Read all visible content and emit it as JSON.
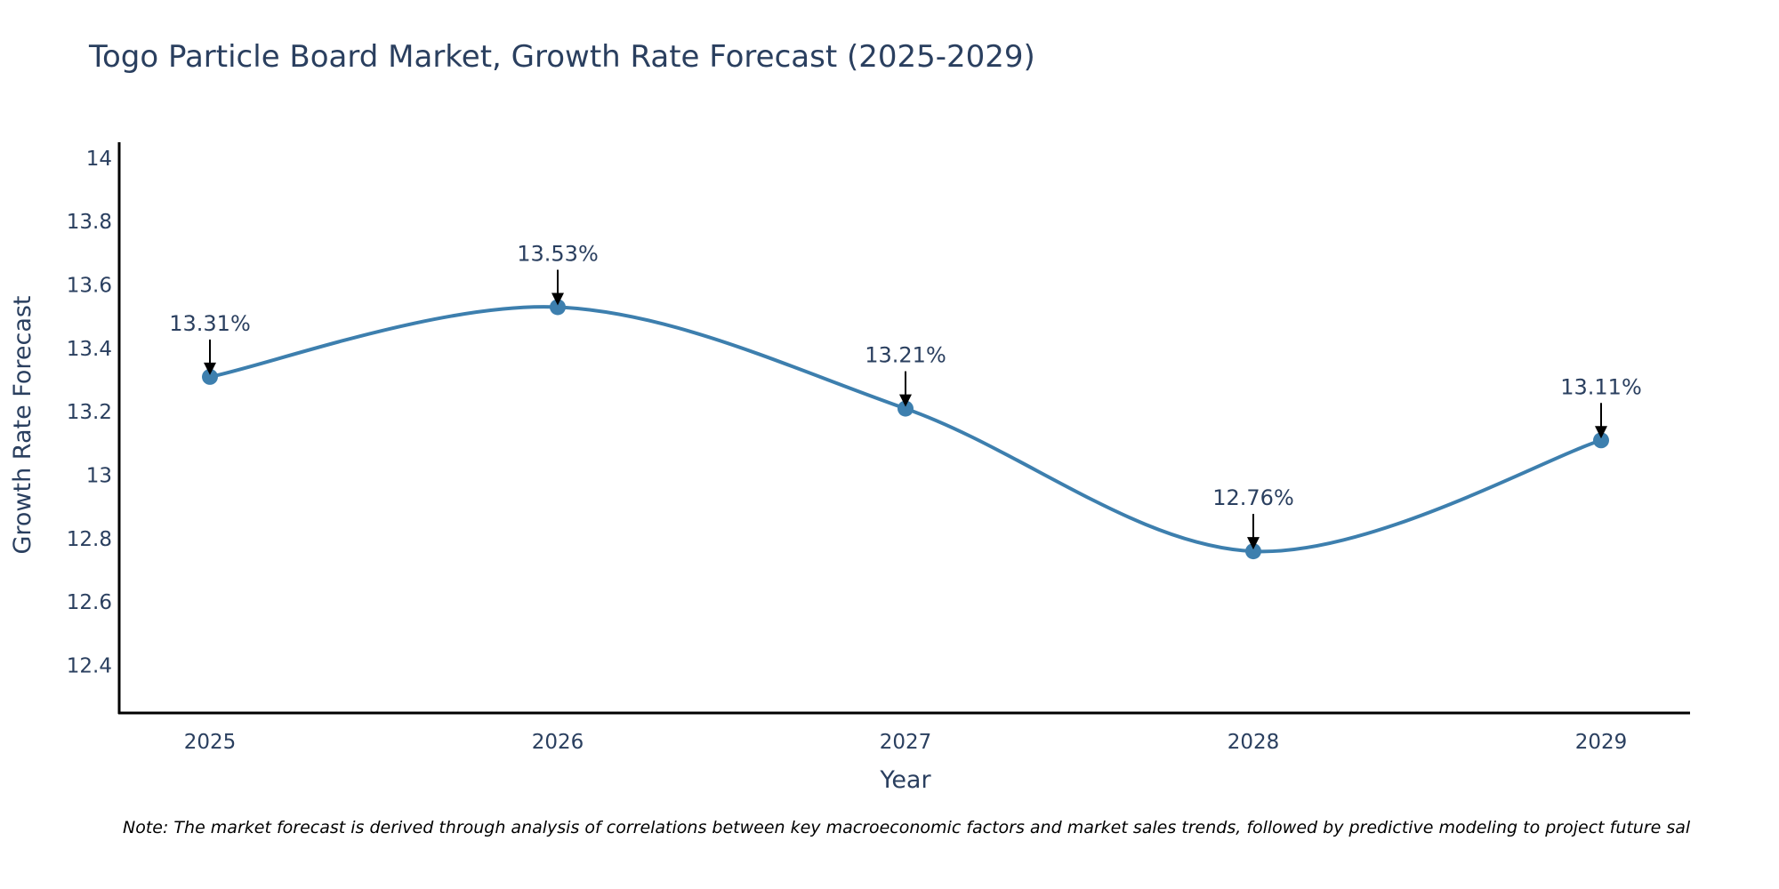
{
  "title": "Togo Particle Board Market, Growth Rate Forecast (2025-2029)",
  "note": "Note: The market forecast is derived through analysis of correlations between key macroeconomic factors and market sales trends, followed by predictive modeling to project future sal",
  "colors": {
    "line": "#3d7fae",
    "marker": "#3d7fae",
    "axis": "#000000",
    "text": "#2a3f5f",
    "arrow": "#000000"
  },
  "chart_data": {
    "type": "line",
    "title": "Togo Particle Board Market, Growth Rate Forecast (2025-2029)",
    "xlabel": "Year",
    "ylabel": "Growth Rate Forecast",
    "categories": [
      "2025",
      "2026",
      "2027",
      "2028",
      "2029"
    ],
    "values": [
      13.31,
      13.53,
      13.21,
      12.76,
      13.11
    ],
    "data_labels": [
      "13.31%",
      "13.53%",
      "13.21%",
      "12.76%",
      "13.11%"
    ],
    "ylim": [
      12.25,
      14.05
    ],
    "yticks": [
      12.4,
      12.6,
      12.8,
      13,
      13.2,
      13.4,
      13.6,
      13.8,
      14
    ],
    "ytick_labels": [
      "12.4",
      "12.6",
      "12.8",
      "13",
      "13.2",
      "13.4",
      "13.6",
      "13.8",
      "14"
    ],
    "line_shape": "spline",
    "grid": false,
    "legend": "none"
  }
}
